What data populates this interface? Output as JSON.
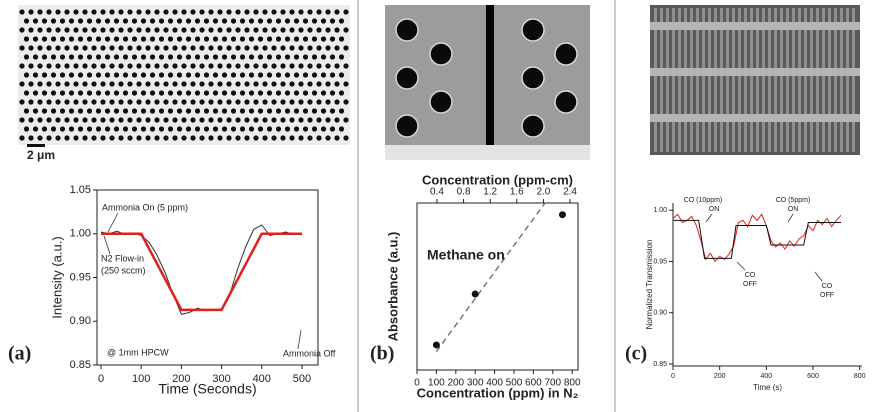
{
  "image_scale_label": "2 μm",
  "chart_data": [
    {
      "type": "line",
      "label": "(a)",
      "xlabel": "Time (Seconds)",
      "ylabel": "Intensity (a.u.)",
      "xlim": [
        -10,
        540
      ],
      "ylim": [
        0.85,
        1.05
      ],
      "xticks": [
        0,
        100,
        200,
        300,
        400,
        500
      ],
      "yticks": [
        {
          "value": 0.85,
          "label": "0.85"
        },
        {
          "value": 0.9,
          "label": "0.90"
        },
        {
          "value": 0.95,
          "label": "0.95"
        },
        {
          "value": 1,
          "label": "1.00"
        },
        {
          "value": 1.05,
          "label": "1.05"
        }
      ],
      "series": [
        {
          "color": "#333333",
          "x": [
            0,
            20,
            40,
            60,
            80,
            100,
            120,
            140,
            160,
            180,
            200,
            220,
            240,
            260,
            280,
            300,
            320,
            340,
            360,
            380,
            400,
            420,
            440,
            460,
            480,
            500
          ],
          "values": [
            1.002,
            1.0,
            1.003,
            0.999,
            1.001,
            0.998,
            0.99,
            0.975,
            0.955,
            0.93,
            0.908,
            0.91,
            0.915,
            0.912,
            0.913,
            0.914,
            0.93,
            0.96,
            0.985,
            1.005,
            1.01,
            0.998,
            1.0,
            1.002,
            0.999,
            1.0
          ]
        },
        {
          "color": "#e0201b",
          "x": [
            0,
            100,
            200,
            300,
            400,
            500
          ],
          "values": [
            1.0,
            1.0,
            0.913,
            0.913,
            1.0,
            1.0
          ]
        }
      ],
      "annotations": [
        [
          "Ammonia On (5 ppm)"
        ],
        [
          "N2 Flow-in",
          "(250 sccm)"
        ],
        [
          "Ammonia Off"
        ],
        [
          "@ 1mm HPCW"
        ]
      ]
    },
    {
      "type": "scatter",
      "label": "(b)",
      "xlabel": "Concentration (ppm) in N₂",
      "ylabel": "Absorbance (a.u.)",
      "x2label": "Concentration (ppm-cm)",
      "xlim": [
        0,
        830
      ],
      "ylim": [
        0,
        1
      ],
      "xticks": [
        0,
        100,
        200,
        300,
        400,
        500,
        600,
        700,
        800
      ],
      "x2lim": [
        0.1,
        2.52
      ],
      "x2ticks": [
        0.4,
        0.8,
        1.2,
        1.6,
        {
          "value": 2,
          "label": "2.0"
        },
        2.4
      ],
      "x": [
        100,
        300,
        750
      ],
      "values": [
        0.15,
        0.455,
        0.93
      ],
      "color": "#111111",
      "fit": {
        "x": [
          100,
          660
        ],
        "values": [
          0.11,
          1.0
        ],
        "color": "#666666"
      },
      "annotations": [
        [
          "Methane on"
        ]
      ]
    },
    {
      "type": "line",
      "label": "(c)",
      "xlabel": "Time (s)",
      "ylabel": "Normalized Transmission",
      "xlim": [
        0,
        810
      ],
      "ylim": [
        0.848,
        1.007
      ],
      "xticks": [
        0,
        200,
        400,
        600,
        800
      ],
      "yticks": [
        {
          "value": 0.85,
          "label": "0.85"
        },
        {
          "value": 0.9,
          "label": "0.90"
        },
        {
          "value": 0.95,
          "label": "0.95"
        },
        {
          "value": 1,
          "label": "1.00"
        }
      ],
      "series": [
        {
          "color": "#e0201b",
          "x": [
            0,
            20,
            40,
            60,
            80,
            100,
            120,
            140,
            160,
            180,
            200,
            220,
            240,
            260,
            280,
            300,
            320,
            340,
            360,
            380,
            400,
            420,
            440,
            460,
            480,
            500,
            520,
            540,
            560,
            580,
            600,
            620,
            640,
            660,
            680,
            700,
            720
          ],
          "values": [
            0.992,
            0.996,
            0.988,
            0.99,
            0.994,
            0.985,
            0.97,
            0.952,
            0.958,
            0.95,
            0.955,
            0.952,
            0.957,
            0.965,
            0.988,
            0.99,
            0.984,
            0.995,
            0.99,
            0.996,
            0.985,
            0.97,
            0.964,
            0.968,
            0.962,
            0.97,
            0.965,
            0.972,
            0.975,
            0.985,
            0.98,
            0.99,
            0.986,
            0.992,
            0.984,
            0.99,
            0.995
          ]
        },
        {
          "color": "#111111",
          "x": [
            0,
            110,
            135,
            250,
            270,
            400,
            420,
            560,
            580,
            720
          ],
          "values": [
            0.99,
            0.99,
            0.953,
            0.953,
            0.985,
            0.985,
            0.966,
            0.966,
            0.988,
            0.988
          ]
        }
      ],
      "annotations": [
        [
          "CO (10ppm)",
          "ON"
        ],
        [
          "CO",
          "OFF"
        ],
        [
          "CO (5ppm)",
          "ON"
        ],
        [
          "CO",
          "OFF"
        ]
      ]
    }
  ]
}
